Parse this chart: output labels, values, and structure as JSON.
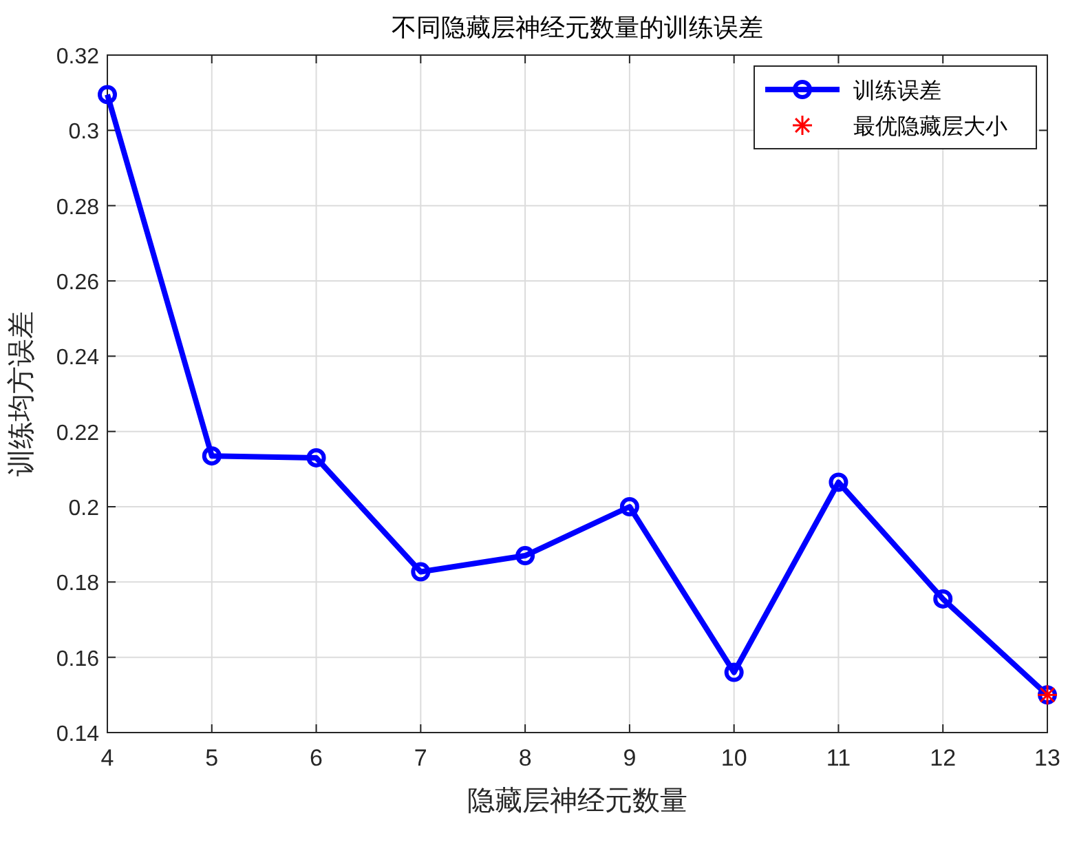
{
  "chart_data": {
    "type": "line",
    "title": "不同隐藏层神经元数量的训练误差",
    "xlabel": "隐藏层神经元数量",
    "ylabel": "训练均方误差",
    "x": [
      4,
      5,
      6,
      7,
      8,
      9,
      10,
      11,
      12,
      13
    ],
    "series": [
      {
        "name": "训练误差",
        "color": "#0000ff",
        "type": "line",
        "marker": "circle",
        "values": [
          0.3095,
          0.2135,
          0.213,
          0.1827,
          0.187,
          0.2,
          0.156,
          0.2065,
          0.1755,
          0.15
        ]
      },
      {
        "name": "最优隐藏层大小",
        "color": "#ff0000",
        "type": "scatter",
        "marker": "cross",
        "x": [
          13
        ],
        "values": [
          0.15
        ]
      }
    ],
    "xlim": [
      4,
      13
    ],
    "ylim": [
      0.14,
      0.32
    ],
    "xticks": [
      4,
      5,
      6,
      7,
      8,
      9,
      10,
      11,
      12,
      13
    ],
    "yticks": [
      0.14,
      0.16,
      0.18,
      {
        "value": 0.2,
        "label": "0.2"
      },
      0.22,
      0.24,
      0.26,
      0.28,
      {
        "value": 0.3,
        "label": "0.3"
      },
      0.32
    ],
    "grid": true,
    "legend": "top right"
  }
}
